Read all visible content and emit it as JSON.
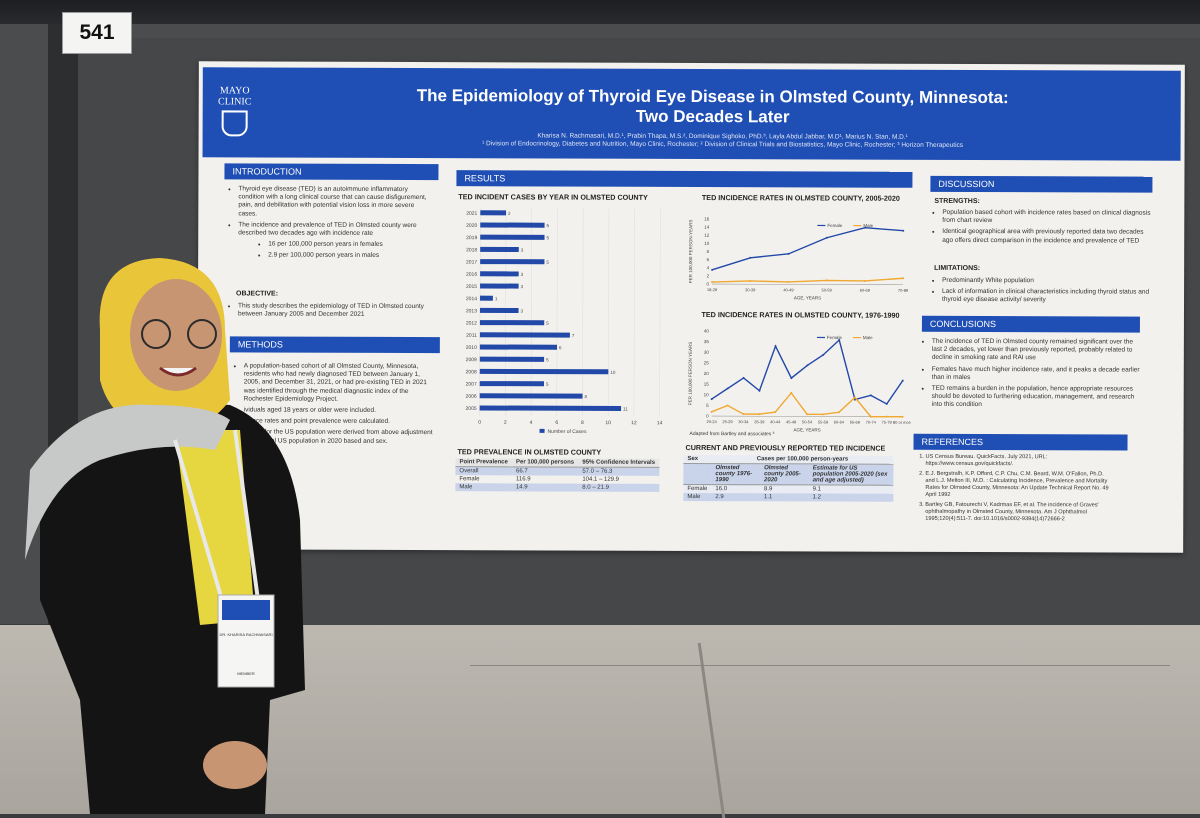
{
  "booth_number": "541",
  "poster": {
    "logo_line1": "MAYO",
    "logo_line2": "CLINIC",
    "title_line1": "The Epidemiology of Thyroid Eye Disease in Olmsted County, Minnesota:",
    "title_line2": "Two Decades Later",
    "authors": "Kharisa N. Rachmasari, M.D.¹, Prabin Thapa, M.S.², Dominique Sighoko, PhD.³, Layla Abdul Jabbar, M.D¹, Marius N. Stan, M.D.¹",
    "affiliations": "¹ Division of Endocrinology, Diabetes and Nutrition, Mayo Clinic, Rochester; ² Division of Clinical Trials and Biostatistics, Mayo Clinic, Rochester; ³ Horizon Therapeutics",
    "introduction": {
      "heading": "INTRODUCTION",
      "bullet1": "Thyroid eye disease (TED) is an autoimmune inflammatory condition with a long clinical course that can cause disfigurement, pain, and debilitation with potential vision loss in more severe cases.",
      "bullet2": "The incidence and prevalence of TED in Olmsted county were described two decades ago with incidence rate",
      "sub1": "16 per 100,000 person years in females",
      "sub2": "2.9 per 100,000 person years in males",
      "objective_label": "OBJECTIVE:",
      "objective": "This study describes the epidemiology of TED in Olmsted county between January 2005 and December 2021"
    },
    "methods": {
      "heading": "METHODS",
      "bullet1": "A population-based cohort of all Olmsted County, Minnesota, residents who had newly diagnosed TED between January 1, 2005, and December 31, 2021, or had pre-existing TED in 2021 was identified through the medical diagnostic index of the Rochester Epidemiology Project.",
      "bullet2": "ividuals aged 18 years or older were included.",
      "bullet3": "idence rates and point prevalence were calculated.",
      "bullet4": "idence for the US population were derived from above adjustment for the total US population in 2020 based and sex."
    },
    "results": {
      "heading": "RESULTS",
      "prevalence_title": "TED PREVALENCE IN OLMSTED COUNTY",
      "prevalence_headers": [
        "Point Prevalence",
        "Per 100,000 persons",
        "95% Confidence Intervals"
      ],
      "prevalence_rows": [
        [
          "Overall",
          "66.7",
          "57.0 – 76.3"
        ],
        [
          "Female",
          "116.9",
          "104.1 – 129.9"
        ],
        [
          "Male",
          "14.9",
          "8.0 – 21.9"
        ]
      ]
    },
    "discussion": {
      "heading": "DISCUSSION",
      "strengths_label": "STRENGTHS:",
      "strength1": "Population based cohort with incidence rates based on clinical diagnosis from chart review",
      "strength2": "Identical geographical area with previously reported data two decades ago offers direct comparison in the incidence and prevalence of TED",
      "limitations_label": "LIMITATIONS:",
      "limitation1": "Predominantly White population",
      "limitation2": "Lack of information in clinical characteristics including thyroid status and thyroid eye disease activity/ severity"
    },
    "conclusions": {
      "heading": "CONCLUSIONS",
      "c1": "The incidence of TED in Olmsted county remained significant over the last 2 decades, yet lower than previously reported, probably related to decline in smoking rate and RAI use",
      "c2": "Females have much higher incidence rate, and it peaks a decade earlier than in males",
      "c3": "TED remains a burden in the population, hence appropriate resources should be devoted to furthering education, management, and research into this condition"
    },
    "references": {
      "heading": "REFERENCES",
      "r1": "US Census Bureau. QuickFacts. July 2021, URL: https://www.census.gov/quickfacts/.",
      "r2": "E.J. Bergstralh, K.P. Offord, C.P. Chu, C.M. Beard, W.M. O'Fallon, Ph.D. and L.J. Melton III, M.D. : Calculating Incidence, Prevalence and Mortality Rates for Olmsted County, Minnesota: An Update Technical Report No. 49 April 1992",
      "r3": "Bartley GB, Fatourechi V, Kadrmas EF, et al. The incidence of Graves' ophthalmopathy in Olmsted County, Minnesota. Am J Ophthalmol 1995;120(4):511-7. doi:10.1016/s0002-9394(14)72666-2"
    },
    "current_table": {
      "title": "CURRENT AND PREVIOUSLY REPORTED TED INCIDENCE",
      "col_sex": "Sex",
      "col_group": "Cases per 100,000 person-years",
      "headers": [
        "Olmsted county 1976-1990",
        "Olmsted county 2005-2020",
        "Estimate for US population 2005-2020 (sex and age adjusted)"
      ],
      "rows": [
        [
          "Female",
          "16.0",
          "8.9",
          "9.1"
        ],
        [
          "Male",
          "2.9",
          "1.1",
          "1.2"
        ]
      ]
    },
    "adapted_note": "Adapted from Bartley and associates ³"
  },
  "badge": {
    "name": "DR. KHARISA RACHMASARI",
    "role": "MEMBER"
  },
  "chart_data": [
    {
      "type": "bar",
      "title": "TED INCIDENT CASES BY YEAR IN OLMSTED COUNTY",
      "orientation": "horizontal",
      "categories": [
        "2021",
        "2020",
        "2019",
        "2018",
        "2017",
        "2016",
        "2015",
        "2014",
        "2013",
        "2012",
        "2011",
        "2010",
        "2009",
        "2008",
        "2007",
        "2006",
        "2005"
      ],
      "values": [
        2,
        5,
        5,
        3,
        5,
        3,
        3,
        1,
        3,
        5,
        7,
        6,
        5,
        10,
        5,
        8,
        11
      ],
      "xlim": [
        0,
        14
      ],
      "xticks": [
        "0",
        "2",
        "4",
        "6",
        "8",
        "10",
        "12",
        "14"
      ],
      "legend": "Number of Cases"
    },
    {
      "type": "line",
      "title": "TED INCIDENCE RATES IN OLMSTED COUNTY, 2005-2020",
      "categories": [
        "18-29",
        "30-39",
        "40-49",
        "50-59",
        "60-69",
        "70-89"
      ],
      "series": [
        {
          "name": "Female",
          "values": [
            3.5,
            6.5,
            7.5,
            11.5,
            14,
            13.3
          ]
        },
        {
          "name": "Male",
          "values": [
            0.5,
            0.8,
            0.6,
            1.0,
            0.9,
            1.6
          ]
        }
      ],
      "ylim": [
        0,
        16
      ],
      "yticks": [
        "0",
        "2",
        "4",
        "6",
        "8",
        "10",
        "12",
        "14",
        "16"
      ],
      "xlabel": "AGE, YEARS",
      "ylabel": "PER 100,000 PERSON-YEARS"
    },
    {
      "type": "line",
      "title": "TED INCIDENCE RATES IN OLMSTED COUNTY, 1976-1990",
      "categories": [
        "20-24",
        "25-29",
        "30-34",
        "35-39",
        "40-44",
        "45-49",
        "50-54",
        "55-59",
        "60-64",
        "65-69",
        "70-74",
        "75-79",
        "80 or more"
      ],
      "series": [
        {
          "name": "Female",
          "values": [
            8,
            13,
            18,
            12,
            33,
            18,
            24,
            29,
            36,
            8,
            10,
            6,
            17
          ]
        },
        {
          "name": "Male",
          "values": [
            2,
            5,
            1,
            1,
            2,
            11,
            1,
            1,
            2,
            9,
            0,
            0,
            0
          ]
        }
      ],
      "ylim": [
        0,
        40
      ],
      "yticks": [
        "0",
        "5",
        "10",
        "15",
        "20",
        "25",
        "30",
        "35",
        "40"
      ],
      "xlabel": "AGE, YEARS",
      "ylabel": "PER 100,000 PERSON YEARS"
    }
  ]
}
